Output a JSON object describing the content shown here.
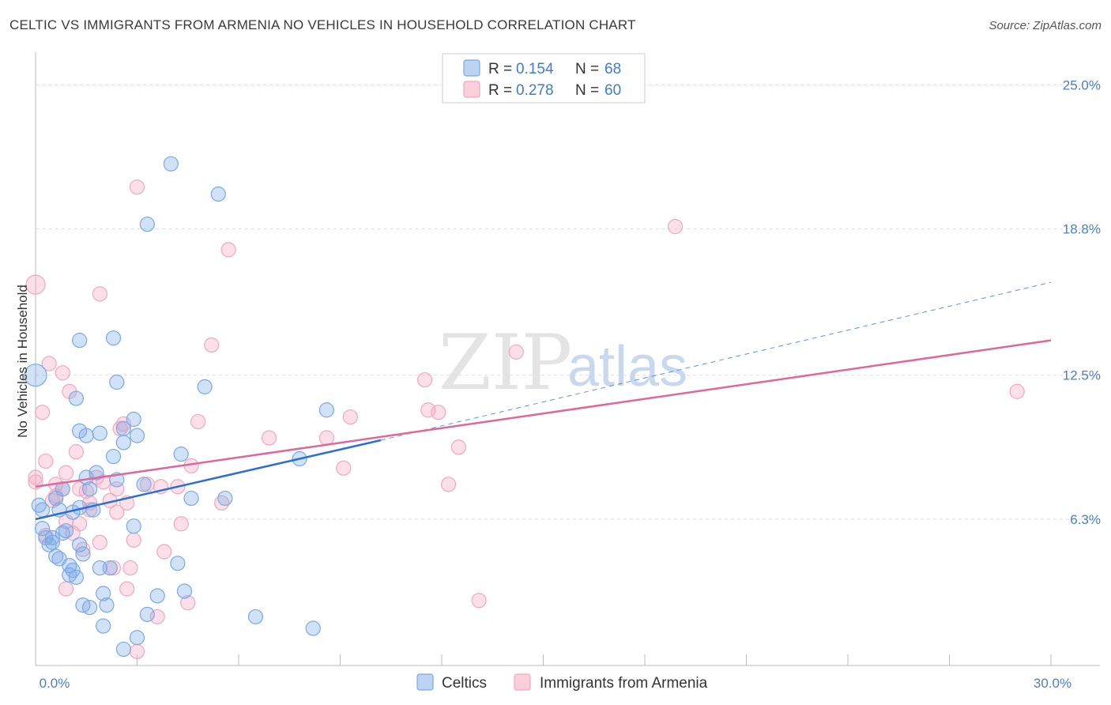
{
  "title": "CELTIC VS IMMIGRANTS FROM ARMENIA NO VEHICLES IN HOUSEHOLD CORRELATION CHART",
  "source": "Source: ZipAtlas.com",
  "colors": {
    "blue": "#7aa9e6",
    "blue_line": "#2a6fd1",
    "pink": "#f4a7bf",
    "pink_line": "#e0679a",
    "axis_text": "#4a7fd0",
    "grid": "#dddddd"
  },
  "legend": {
    "rows": [
      {
        "r_label": "R =",
        "r_value": "0.154",
        "n_label": "N =",
        "n_value": "68"
      },
      {
        "r_label": "R =",
        "r_value": "0.278",
        "n_label": "N =",
        "n_value": "60"
      }
    ]
  },
  "bottom_legend": [
    "Celtics",
    "Immigrants from Armenia"
  ],
  "watermark": {
    "zip": "ZIP",
    "atlas": "atlas"
  },
  "chart_data": {
    "type": "scatter",
    "title": "CELTIC VS IMMIGRANTS FROM ARMENIA NO VEHICLES IN HOUSEHOLD CORRELATION CHART",
    "xlabel": "",
    "ylabel": "No Vehicles in Household",
    "xlim": [
      0,
      30
    ],
    "ylim": [
      0,
      26
    ],
    "x_tick_labels": [
      {
        "value": 0,
        "label": "0.0%"
      },
      {
        "value": 30,
        "label": "30.0%"
      }
    ],
    "y_tick_labels": [
      {
        "value": 6.3,
        "label": "6.3%"
      },
      {
        "value": 12.5,
        "label": "12.5%"
      },
      {
        "value": 18.8,
        "label": "18.8%"
      },
      {
        "value": 25.0,
        "label": "25.0%"
      }
    ],
    "x_minor_ticks": [
      0,
      3,
      6,
      9,
      12,
      15,
      18,
      21,
      24,
      27,
      30
    ],
    "series": [
      {
        "name": "Celtics",
        "R": 0.154,
        "N": 68,
        "trend": {
          "x0": 0,
          "y0": 6.3,
          "x1": 10.2,
          "y1": 9.7,
          "dash_to_x": 30,
          "dash_to_y": 16.5
        },
        "points": [
          [
            0.0,
            12.5,
            14
          ],
          [
            0.1,
            6.9,
            9
          ],
          [
            0.2,
            6.7,
            9
          ],
          [
            0.2,
            5.9,
            9
          ],
          [
            0.3,
            5.5,
            9
          ],
          [
            0.4,
            5.2,
            9
          ],
          [
            0.5,
            5.3,
            9
          ],
          [
            0.5,
            5.5,
            9
          ],
          [
            0.6,
            7.2,
            9
          ],
          [
            0.6,
            4.7,
            9
          ],
          [
            0.7,
            4.6,
            9
          ],
          [
            0.7,
            6.7,
            9
          ],
          [
            0.8,
            5.7,
            9
          ],
          [
            0.8,
            7.6,
            9
          ],
          [
            0.9,
            5.8,
            9
          ],
          [
            1.0,
            4.3,
            9
          ],
          [
            1.0,
            3.9,
            9
          ],
          [
            1.1,
            4.1,
            9
          ],
          [
            1.1,
            6.6,
            9
          ],
          [
            1.2,
            3.8,
            9
          ],
          [
            1.2,
            11.5,
            9
          ],
          [
            1.3,
            14.0,
            9
          ],
          [
            1.3,
            10.1,
            9
          ],
          [
            1.3,
            6.8,
            9
          ],
          [
            1.3,
            5.2,
            9
          ],
          [
            1.4,
            4.8,
            9
          ],
          [
            1.4,
            2.6,
            9
          ],
          [
            1.5,
            8.1,
            9
          ],
          [
            1.5,
            9.9,
            9
          ],
          [
            1.6,
            7.6,
            9
          ],
          [
            1.6,
            2.5,
            9
          ],
          [
            1.7,
            6.7,
            9
          ],
          [
            1.8,
            8.3,
            9
          ],
          [
            1.9,
            10.0,
            9
          ],
          [
            1.9,
            4.2,
            9
          ],
          [
            2.0,
            3.1,
            9
          ],
          [
            2.0,
            1.7,
            9
          ],
          [
            2.1,
            2.6,
            9
          ],
          [
            2.2,
            4.2,
            9
          ],
          [
            2.3,
            9.0,
            9
          ],
          [
            2.3,
            14.1,
            9
          ],
          [
            2.4,
            8.0,
            9
          ],
          [
            2.4,
            12.2,
            9
          ],
          [
            2.6,
            9.6,
            9
          ],
          [
            2.6,
            10.2,
            9
          ],
          [
            2.6,
            0.7,
            9
          ],
          [
            2.9,
            10.6,
            9
          ],
          [
            2.9,
            6.0,
            9
          ],
          [
            3.0,
            1.2,
            9
          ],
          [
            3.0,
            9.9,
            9
          ],
          [
            3.2,
            7.8,
            9
          ],
          [
            3.3,
            2.2,
            9
          ],
          [
            3.3,
            19.0,
            9
          ],
          [
            3.6,
            3.0,
            9
          ],
          [
            4.0,
            21.6,
            9
          ],
          [
            4.2,
            4.4,
            9
          ],
          [
            4.3,
            9.1,
            9
          ],
          [
            4.4,
            3.2,
            9
          ],
          [
            4.6,
            7.2,
            9
          ],
          [
            5.0,
            12.0,
            9
          ],
          [
            5.4,
            20.3,
            9
          ],
          [
            5.6,
            7.2,
            9
          ],
          [
            6.5,
            2.1,
            9
          ],
          [
            7.8,
            8.9,
            9
          ],
          [
            8.2,
            1.6,
            9
          ],
          [
            8.6,
            11.0,
            9
          ]
        ]
      },
      {
        "name": "Immigrants from Armenia",
        "R": 0.278,
        "N": 60,
        "trend": {
          "x0": 0,
          "y0": 7.7,
          "x1": 30,
          "y1": 14.0
        },
        "points": [
          [
            0.0,
            16.4,
            12
          ],
          [
            0.0,
            8.1,
            9
          ],
          [
            0.0,
            7.9,
            9
          ],
          [
            0.2,
            10.9,
            9
          ],
          [
            0.3,
            8.8,
            9
          ],
          [
            0.3,
            5.6,
            9
          ],
          [
            0.4,
            13.0,
            9
          ],
          [
            0.5,
            7.1,
            9
          ],
          [
            0.6,
            7.3,
            9
          ],
          [
            0.6,
            7.8,
            9
          ],
          [
            0.8,
            7.6,
            9
          ],
          [
            0.8,
            12.6,
            9
          ],
          [
            0.9,
            8.3,
            9
          ],
          [
            0.9,
            6.2,
            9
          ],
          [
            0.9,
            3.3,
            9
          ],
          [
            1.0,
            11.8,
            9
          ],
          [
            1.1,
            5.7,
            9
          ],
          [
            1.2,
            9.2,
            9
          ],
          [
            1.3,
            6.1,
            9
          ],
          [
            1.3,
            7.6,
            9
          ],
          [
            1.4,
            5.0,
            9
          ],
          [
            1.5,
            7.5,
            9
          ],
          [
            1.6,
            7.0,
            9
          ],
          [
            1.6,
            6.7,
            9
          ],
          [
            1.8,
            8.1,
            9
          ],
          [
            1.9,
            5.3,
            9
          ],
          [
            1.9,
            16.0,
            9
          ],
          [
            2.0,
            7.9,
            9
          ],
          [
            2.2,
            7.1,
            9
          ],
          [
            2.3,
            4.2,
            9
          ],
          [
            2.4,
            7.6,
            9
          ],
          [
            2.4,
            6.6,
            9
          ],
          [
            2.5,
            10.2,
            9
          ],
          [
            2.6,
            10.4,
            9
          ],
          [
            2.7,
            7.0,
            9
          ],
          [
            2.7,
            3.3,
            9
          ],
          [
            2.8,
            4.2,
            9
          ],
          [
            2.9,
            5.4,
            9
          ],
          [
            3.0,
            0.6,
            9
          ],
          [
            3.0,
            20.6,
            9
          ],
          [
            3.3,
            7.8,
            9
          ],
          [
            3.6,
            2.1,
            9
          ],
          [
            3.7,
            7.7,
            9
          ],
          [
            3.8,
            4.9,
            9
          ],
          [
            4.2,
            7.7,
            9
          ],
          [
            4.3,
            6.1,
            9
          ],
          [
            4.5,
            2.7,
            9
          ],
          [
            4.6,
            8.6,
            9
          ],
          [
            4.8,
            10.5,
            9
          ],
          [
            5.2,
            13.8,
            9
          ],
          [
            5.5,
            7.0,
            9
          ],
          [
            5.7,
            17.9,
            9
          ],
          [
            6.9,
            9.8,
            9
          ],
          [
            8.6,
            9.8,
            9
          ],
          [
            9.1,
            8.5,
            9
          ],
          [
            9.3,
            10.7,
            9
          ],
          [
            11.5,
            12.3,
            9
          ],
          [
            11.6,
            11.0,
            9
          ],
          [
            11.9,
            10.9,
            9
          ],
          [
            12.2,
            7.8,
            9
          ],
          [
            12.5,
            9.4,
            9
          ],
          [
            13.1,
            2.8,
            9
          ],
          [
            14.2,
            13.5,
            9
          ],
          [
            18.9,
            18.9,
            9
          ],
          [
            29.0,
            11.8,
            9
          ]
        ]
      }
    ]
  }
}
